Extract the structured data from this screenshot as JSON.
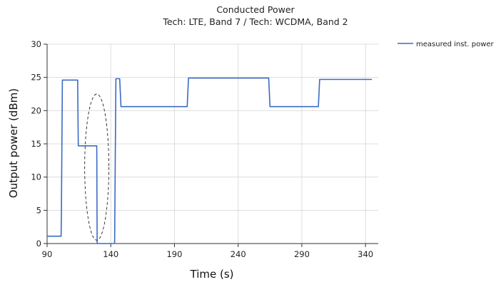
{
  "chart_data": {
    "type": "line",
    "title": "Conducted Power",
    "subtitle": "Tech: LTE, Band 7 / Tech: WCDMA, Band 2",
    "xlabel": "Time (s)",
    "ylabel": "Output power (dBm)",
    "xlim": [
      90,
      350
    ],
    "ylim": [
      0,
      30
    ],
    "xticks": [
      90,
      140,
      190,
      240,
      290,
      340
    ],
    "yticks": [
      0,
      5,
      10,
      15,
      20,
      25,
      30
    ],
    "grid": true,
    "legend_position": "top-right",
    "series": [
      {
        "name": "measured inst. power",
        "color": "#3a6bc4",
        "x": [
          90,
          101,
          101.2,
          102,
          114,
          114.5,
          129,
          129.3,
          143,
          143.5,
          144,
          147,
          148,
          200,
          201,
          264,
          265,
          303,
          304,
          345
        ],
        "y": [
          1.1,
          1.1,
          4.0,
          24.6,
          24.6,
          14.7,
          14.7,
          0,
          0,
          12.5,
          24.8,
          24.8,
          20.6,
          20.6,
          24.9,
          24.9,
          20.6,
          20.6,
          24.7,
          24.7
        ]
      }
    ],
    "annotation": {
      "type": "dashed-ellipse",
      "center": [
        129,
        11.5
      ],
      "rx": 9.5,
      "ry": 11
    }
  }
}
